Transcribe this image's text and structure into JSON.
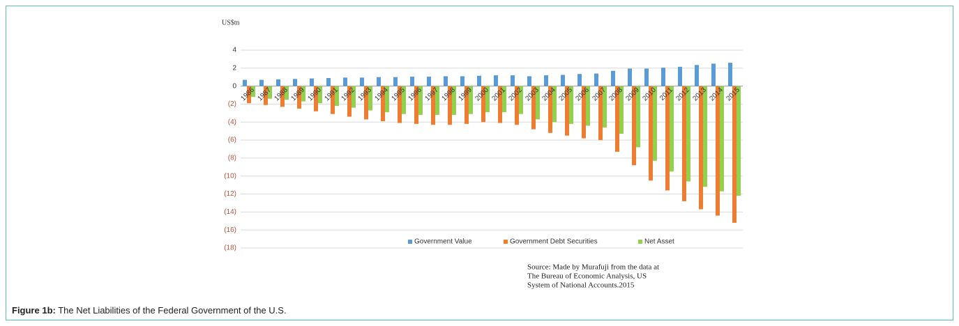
{
  "chart_data": {
    "type": "bar",
    "y_label": "US$tn",
    "categories": [
      "1986",
      "1987",
      "1988",
      "1989",
      "1990",
      "1991",
      "1992",
      "1993",
      "1994",
      "1995",
      "1996",
      "1997",
      "1998",
      "1999",
      "2000",
      "2001",
      "2002",
      "2003",
      "2004",
      "2005",
      "2006",
      "2007",
      "2008",
      "2009",
      "2010",
      "2011",
      "2012",
      "2013",
      "2014",
      "2015"
    ],
    "series": [
      {
        "name": "Government Value",
        "color": "#5b9bd5",
        "values": [
          0.7,
          0.7,
          0.75,
          0.8,
          0.85,
          0.9,
          0.95,
          0.95,
          1.0,
          1.0,
          1.05,
          1.05,
          1.1,
          1.1,
          1.15,
          1.2,
          1.2,
          1.1,
          1.2,
          1.25,
          1.35,
          1.4,
          1.7,
          1.95,
          1.95,
          2.05,
          2.15,
          2.35,
          2.5,
          2.6
        ]
      },
      {
        "name": "Government Debt Securities",
        "color": "#ed7d31",
        "values": [
          -1.9,
          -2.1,
          -2.3,
          -2.5,
          -2.8,
          -3.1,
          -3.4,
          -3.7,
          -3.9,
          -4.1,
          -4.2,
          -4.3,
          -4.3,
          -4.2,
          -4.0,
          -4.1,
          -4.3,
          -4.8,
          -5.2,
          -5.5,
          -5.8,
          -6.0,
          -7.3,
          -8.8,
          -10.5,
          -11.6,
          -12.8,
          -13.7,
          -14.4,
          -15.2
        ]
      },
      {
        "name": "Net Asset",
        "color": "#92d050",
        "values": [
          -1.2,
          -1.4,
          -1.5,
          -1.7,
          -1.9,
          -2.2,
          -2.4,
          -2.7,
          -2.9,
          -3.1,
          -3.2,
          -3.2,
          -3.2,
          -3.1,
          -2.9,
          -2.9,
          -3.1,
          -3.7,
          -4.0,
          -4.2,
          -4.4,
          -4.6,
          -5.3,
          -6.8,
          -8.3,
          -9.5,
          -10.6,
          -11.2,
          -11.7,
          -12.2
        ]
      }
    ],
    "ylim": [
      -18,
      4
    ],
    "yticks": [
      4,
      2,
      0,
      {
        "value": -2,
        "label": "(2)"
      },
      {
        "value": -4,
        "label": "(4)"
      },
      {
        "value": -6,
        "label": "(6)"
      },
      {
        "value": -8,
        "label": "(8)"
      },
      {
        "value": -10,
        "label": "(10)"
      },
      {
        "value": -12,
        "label": "(12)"
      },
      {
        "value": -14,
        "label": "(14)"
      },
      {
        "value": -16,
        "label": "(16)"
      },
      {
        "value": -18,
        "label": "(18)"
      }
    ],
    "grid": true,
    "legend": "bottom",
    "source": [
      "Source: Made by Murafuji from the data at",
      "The Bureau of Economic Analysis, US",
      "System of National Accounts.2015"
    ]
  },
  "caption": {
    "label": "Figure 1b:",
    "text": "The Net Liabilities of the Federal Government of the U.S."
  }
}
